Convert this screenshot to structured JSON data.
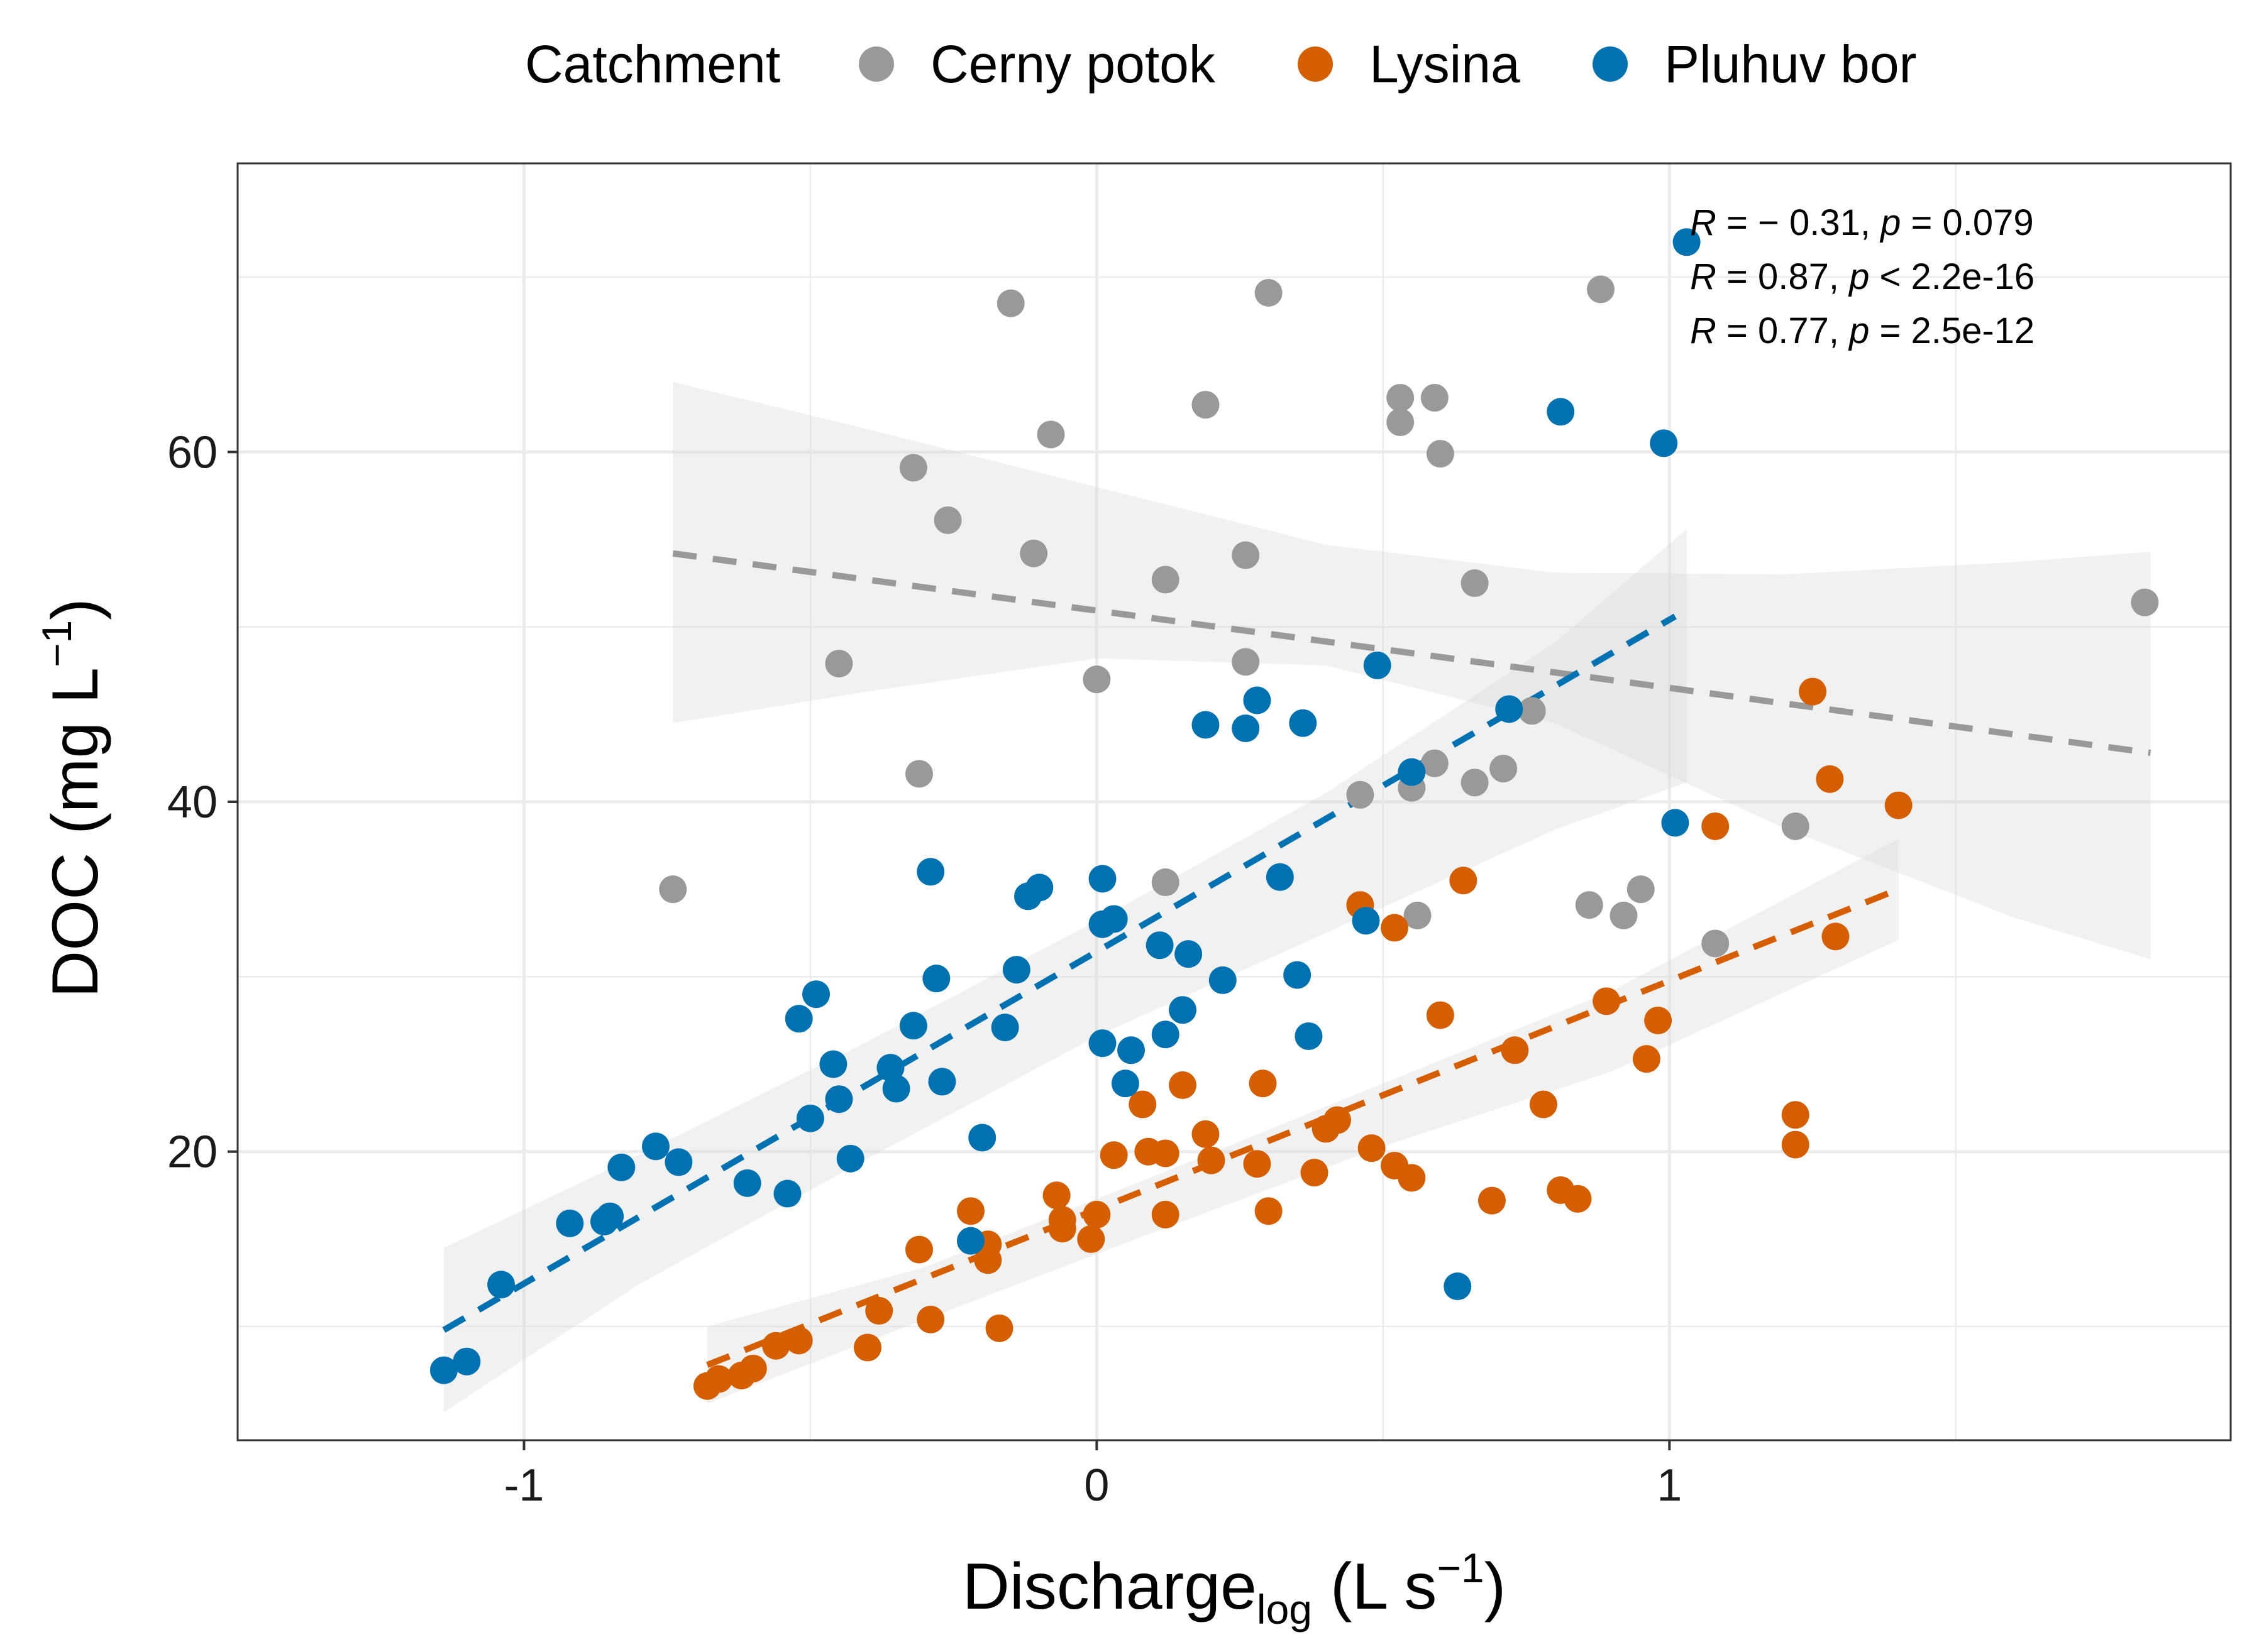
{
  "chart_data": {
    "type": "scatter",
    "title": "",
    "xlabel": {
      "main": "Discharge",
      "sub": "log",
      "unit_open": " (L s",
      "unit_sup": "−1",
      "unit_close": ")"
    },
    "ylabel": {
      "main": "DOC (mg L",
      "sup": "−1",
      "close": ")"
    },
    "xlim": [
      -1.5,
      1.98
    ],
    "ylim": [
      3.5,
      76.5
    ],
    "x_ticks": [
      -1,
      0,
      1
    ],
    "x_tick_labels": [
      "-1",
      "0",
      "1"
    ],
    "y_ticks": [
      20,
      40,
      60
    ],
    "y_tick_labels": [
      "20",
      "40",
      "60"
    ],
    "grid": true,
    "legend": {
      "title": "Catchment",
      "position": "top",
      "entries": [
        "Cerny potok",
        "Lysina",
        "Pluhuv bor"
      ]
    },
    "colors": {
      "Cerny potok": "#999999",
      "Lysina": "#D55E00",
      "Pluhuv bor": "#0072B2",
      "ribbon": "#d9d9d9",
      "grid": "#ebebeb"
    },
    "annotations": [
      {
        "series": "Cerny potok",
        "r_label": "R",
        "r_value": " = − 0.31, ",
        "p_label": "p",
        "p_value": " = 0.079"
      },
      {
        "series": "Lysina",
        "r_label": "R",
        "r_value": " = 0.87, ",
        "p_label": "p",
        "p_value": " < 2.2e-16"
      },
      {
        "series": "Pluhuv bor",
        "r_label": "R",
        "r_value": " = 0.77, ",
        "p_label": "p",
        "p_value": " = 2.5e-12"
      }
    ],
    "series": [
      {
        "name": "Cerny potok",
        "fit": {
          "x": [
            -0.74,
            1.84
          ],
          "y": [
            54.2,
            42.8
          ]
        },
        "ribbon": {
          "x": [
            -0.74,
            -0.4,
            0,
            0.4,
            0.8,
            1.2,
            1.6,
            1.84
          ],
          "upper": [
            64.0,
            61.3,
            58.0,
            54.7,
            53.1,
            53.0,
            53.7,
            54.3
          ],
          "lower": [
            44.5,
            46.3,
            48.2,
            47.8,
            44.5,
            38.5,
            33.4,
            31.0
          ]
        },
        "points": [
          [
            -0.74,
            35.0
          ],
          [
            -0.45,
            47.9
          ],
          [
            -0.32,
            59.1
          ],
          [
            -0.31,
            41.6
          ],
          [
            -0.26,
            56.1
          ],
          [
            -0.15,
            68.5
          ],
          [
            -0.11,
            54.2
          ],
          [
            -0.08,
            61.0
          ],
          [
            0.0,
            47.0
          ],
          [
            0.12,
            52.7
          ],
          [
            0.12,
            35.4
          ],
          [
            0.19,
            62.7
          ],
          [
            0.26,
            48.0
          ],
          [
            0.26,
            54.1
          ],
          [
            0.3,
            69.1
          ],
          [
            0.46,
            40.4
          ],
          [
            0.53,
            63.1
          ],
          [
            0.53,
            61.7
          ],
          [
            0.55,
            40.8
          ],
          [
            0.56,
            33.5
          ],
          [
            0.59,
            42.2
          ],
          [
            0.59,
            63.1
          ],
          [
            0.6,
            59.9
          ],
          [
            0.66,
            52.5
          ],
          [
            0.66,
            41.1
          ],
          [
            0.71,
            41.9
          ],
          [
            0.76,
            45.2
          ],
          [
            0.86,
            34.1
          ],
          [
            0.88,
            69.3
          ],
          [
            0.92,
            33.5
          ],
          [
            0.95,
            35.0
          ],
          [
            1.08,
            31.9
          ],
          [
            1.22,
            38.6
          ],
          [
            1.83,
            51.4
          ]
        ]
      },
      {
        "name": "Lysina",
        "fit": {
          "x": [
            -0.68,
            1.4
          ],
          "y": [
            7.8,
            35.0
          ]
        },
        "ribbon": {
          "x": [
            -0.68,
            -0.3,
            0.1,
            0.5,
            0.9,
            1.4
          ],
          "upper": [
            10.0,
            13.4,
            18.6,
            23.9,
            29.2,
            37.9
          ],
          "lower": [
            5.6,
            10.4,
            15.4,
            20.3,
            24.6,
            32.1
          ]
        },
        "points": [
          [
            -0.68,
            6.6
          ],
          [
            -0.66,
            7.0
          ],
          [
            -0.62,
            7.2
          ],
          [
            -0.6,
            7.6
          ],
          [
            -0.56,
            8.9
          ],
          [
            -0.52,
            9.2
          ],
          [
            -0.4,
            8.8
          ],
          [
            -0.38,
            10.9
          ],
          [
            -0.31,
            14.4
          ],
          [
            -0.29,
            10.4
          ],
          [
            -0.22,
            16.6
          ],
          [
            -0.19,
            14.7
          ],
          [
            -0.19,
            13.8
          ],
          [
            -0.17,
            9.9
          ],
          [
            -0.07,
            17.5
          ],
          [
            -0.06,
            16.1
          ],
          [
            -0.06,
            15.6
          ],
          [
            -0.01,
            15.0
          ],
          [
            0.0,
            16.4
          ],
          [
            0.03,
            19.8
          ],
          [
            0.08,
            22.7
          ],
          [
            0.09,
            20.0
          ],
          [
            0.12,
            19.9
          ],
          [
            0.12,
            16.4
          ],
          [
            0.15,
            23.8
          ],
          [
            0.19,
            21.0
          ],
          [
            0.2,
            19.5
          ],
          [
            0.28,
            19.3
          ],
          [
            0.29,
            23.9
          ],
          [
            0.3,
            16.6
          ],
          [
            0.38,
            18.8
          ],
          [
            0.4,
            21.3
          ],
          [
            0.42,
            21.8
          ],
          [
            0.46,
            34.1
          ],
          [
            0.48,
            20.2
          ],
          [
            0.52,
            19.2
          ],
          [
            0.52,
            32.8
          ],
          [
            0.55,
            18.5
          ],
          [
            0.6,
            27.8
          ],
          [
            0.64,
            35.5
          ],
          [
            0.69,
            17.2
          ],
          [
            0.73,
            25.8
          ],
          [
            0.78,
            22.7
          ],
          [
            0.81,
            17.8
          ],
          [
            0.84,
            17.3
          ],
          [
            0.89,
            28.6
          ],
          [
            0.96,
            25.3
          ],
          [
            0.98,
            27.5
          ],
          [
            1.08,
            38.6
          ],
          [
            1.22,
            22.1
          ],
          [
            1.22,
            20.4
          ],
          [
            1.25,
            46.3
          ],
          [
            1.28,
            41.3
          ],
          [
            1.29,
            32.3
          ],
          [
            1.4,
            39.8
          ]
        ]
      },
      {
        "name": "Pluhuv bor",
        "fit": {
          "x": [
            -1.14,
            1.01
          ],
          "y": [
            9.8,
            50.6
          ]
        },
        "ribbon": {
          "x": [
            -1.14,
            -0.8,
            -0.4,
            0.0,
            0.4,
            0.8,
            1.03
          ],
          "upper": [
            14.5,
            19.8,
            26.3,
            33.2,
            40.5,
            49.1,
            55.6
          ],
          "lower": [
            5.1,
            12.4,
            19.6,
            26.6,
            32.5,
            38.4,
            41.1
          ]
        },
        "points": [
          [
            -1.14,
            7.5
          ],
          [
            -1.1,
            8.0
          ],
          [
            -1.04,
            12.4
          ],
          [
            -0.92,
            15.9
          ],
          [
            -0.86,
            16.0
          ],
          [
            -0.85,
            16.3
          ],
          [
            -0.83,
            19.1
          ],
          [
            -0.77,
            20.3
          ],
          [
            -0.73,
            19.4
          ],
          [
            -0.61,
            18.2
          ],
          [
            -0.54,
            17.6
          ],
          [
            -0.52,
            27.6
          ],
          [
            -0.5,
            21.9
          ],
          [
            -0.49,
            29.0
          ],
          [
            -0.46,
            25.0
          ],
          [
            -0.45,
            23.0
          ],
          [
            -0.43,
            19.6
          ],
          [
            -0.36,
            24.8
          ],
          [
            -0.35,
            23.6
          ],
          [
            -0.32,
            27.2
          ],
          [
            -0.29,
            36.0
          ],
          [
            -0.28,
            29.9
          ],
          [
            -0.27,
            24.0
          ],
          [
            -0.22,
            14.9
          ],
          [
            -0.2,
            20.8
          ],
          [
            -0.16,
            27.1
          ],
          [
            -0.14,
            30.4
          ],
          [
            -0.12,
            34.6
          ],
          [
            -0.1,
            35.1
          ],
          [
            0.01,
            35.6
          ],
          [
            0.01,
            26.2
          ],
          [
            0.01,
            33.0
          ],
          [
            0.03,
            33.3
          ],
          [
            0.05,
            23.9
          ],
          [
            0.06,
            25.8
          ],
          [
            0.11,
            31.8
          ],
          [
            0.12,
            26.7
          ],
          [
            0.15,
            28.1
          ],
          [
            0.16,
            31.3
          ],
          [
            0.19,
            44.4
          ],
          [
            0.22,
            29.8
          ],
          [
            0.26,
            44.2
          ],
          [
            0.28,
            45.8
          ],
          [
            0.32,
            35.7
          ],
          [
            0.35,
            30.1
          ],
          [
            0.36,
            44.5
          ],
          [
            0.37,
            26.6
          ],
          [
            0.47,
            33.2
          ],
          [
            0.49,
            47.8
          ],
          [
            0.55,
            41.7
          ],
          [
            0.63,
            12.3
          ],
          [
            0.72,
            45.3
          ],
          [
            0.81,
            62.3
          ],
          [
            0.99,
            60.5
          ],
          [
            1.01,
            38.8
          ],
          [
            1.03,
            72.0
          ]
        ]
      }
    ]
  }
}
